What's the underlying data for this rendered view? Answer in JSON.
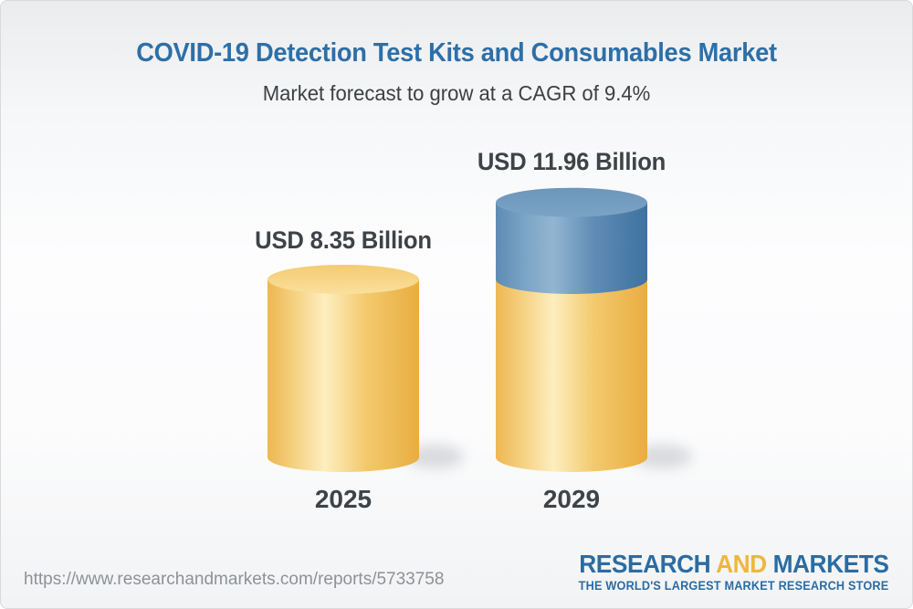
{
  "page": {
    "title": "COVID-19 Detection Test Kits and Consumables Market",
    "subtitle": "Market forecast to grow at a CAGR of 9.4%"
  },
  "chart_data": {
    "type": "bar",
    "variant": "3d-cylinder-stacked",
    "title": "COVID-19 Detection Test Kits and Consumables Market",
    "subtitle": "Market forecast to grow at a CAGR of 9.4%",
    "cagr": "9.4%",
    "unit": "USD Billion",
    "categories": [
      "2025",
      "2029"
    ],
    "values": [
      8.35,
      11.96
    ],
    "ylim": [
      0,
      12
    ],
    "grid": false,
    "legend": "none",
    "bars": [
      {
        "category": "2025",
        "total": 8.35,
        "value_label": "USD 8.35 Billion",
        "segments": [
          {
            "name": "base",
            "value": 8.35,
            "color": "#f0bd55"
          }
        ]
      },
      {
        "category": "2029",
        "total": 11.96,
        "value_label": "USD 11.96 Billion",
        "segments": [
          {
            "name": "base",
            "value": 8.35,
            "color": "#f0bd55"
          },
          {
            "name": "growth",
            "value": 3.61,
            "color": "#5e8cb5"
          }
        ]
      }
    ],
    "colors": {
      "base_yellow": "#f0bd55",
      "growth_blue": "#5e8cb5",
      "label_text": "#3e4347"
    }
  },
  "footer": {
    "url": "https://www.researchandmarkets.com/reports/5733758",
    "logo": {
      "word1": "RESEARCH",
      "word2": "AND",
      "word3": "MARKETS",
      "tagline": "THE WORLD'S LARGEST MARKET RESEARCH STORE",
      "blue": "#2b6ca3",
      "gold": "#f0b63c"
    }
  }
}
